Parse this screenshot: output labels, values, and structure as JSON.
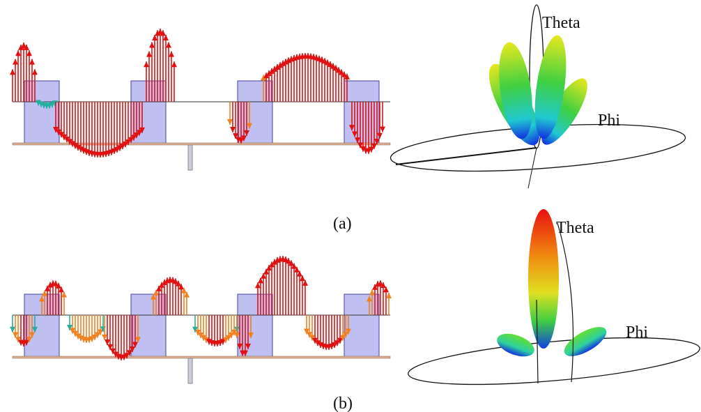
{
  "panels": [
    {
      "label": "(a)",
      "pattern": {
        "theta": "Theta",
        "phi": "Phi"
      }
    },
    {
      "label": "(b)",
      "pattern": {
        "theta": "Theta",
        "phi": "Phi"
      }
    }
  ]
}
